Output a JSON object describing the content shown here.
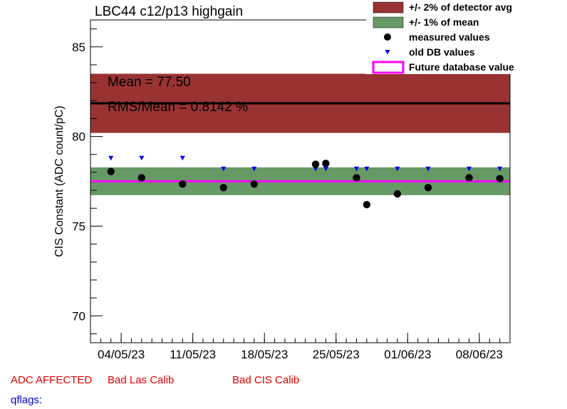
{
  "title": "LBC44 c12/p13 highgain",
  "footer": {
    "adc": "ADC AFFECTED",
    "las": "Bad Las Calib",
    "cis": "Bad CIS Calib",
    "qflags": "qflags:"
  },
  "colors": {
    "detector_band": "#993333",
    "mean_band": "#669966",
    "measured": "#000000",
    "old_db": "#0000ee",
    "future": "#ff00ff",
    "mean_line": "#000000"
  },
  "chart_data": {
    "type": "scatter",
    "title": "LBC44 c12/p13 highgain",
    "ylabel": "CIS Constant (ADC count/pC)",
    "xlabel": "",
    "ylim": [
      68.5,
      86.5
    ],
    "xlim": [
      "2023-05-01",
      "2023-06-11"
    ],
    "y_ticks": [
      70,
      75,
      80,
      85
    ],
    "x_tick_labels": [
      "04/05/23",
      "11/05/23",
      "18/05/23",
      "25/05/23",
      "01/06/23",
      "08/06/23"
    ],
    "mean_text": "Mean = 77.50",
    "rms_text": "RMS/Mean = 0.8142 %",
    "detector_avg": 81.85,
    "detector_band": [
      80.2,
      83.5
    ],
    "mean": 77.5,
    "mean_band": [
      76.73,
      78.28
    ],
    "future_value": 77.5,
    "grid": false,
    "legend_position": "top-right",
    "legend": [
      {
        "label": "+/- 2% of detector avg",
        "kind": "box",
        "color": "#993333"
      },
      {
        "label": "+/- 1% of mean",
        "kind": "box",
        "color": "#669966"
      },
      {
        "label": "measured values",
        "kind": "dot",
        "color": "#000000"
      },
      {
        "label": "old DB values",
        "kind": "tri",
        "color": "#0000ee"
      },
      {
        "label": "Future database value",
        "kind": "line",
        "color": "#ff00ff"
      }
    ],
    "series": [
      {
        "name": "measured values",
        "points": [
          {
            "x": "2023-05-03",
            "y": 78.05
          },
          {
            "x": "2023-05-06",
            "y": 77.7
          },
          {
            "x": "2023-05-10",
            "y": 77.35
          },
          {
            "x": "2023-05-14",
            "y": 77.15
          },
          {
            "x": "2023-05-17",
            "y": 77.35
          },
          {
            "x": "2023-05-23",
            "y": 78.45
          },
          {
            "x": "2023-05-24",
            "y": 78.5
          },
          {
            "x": "2023-05-27",
            "y": 77.7
          },
          {
            "x": "2023-05-28",
            "y": 76.2
          },
          {
            "x": "2023-05-31",
            "y": 76.8
          },
          {
            "x": "2023-06-03",
            "y": 77.15
          },
          {
            "x": "2023-06-07",
            "y": 77.7
          },
          {
            "x": "2023-06-10",
            "y": 77.65
          }
        ]
      },
      {
        "name": "old DB values",
        "points": [
          {
            "x": "2023-05-03",
            "y": 78.8
          },
          {
            "x": "2023-05-06",
            "y": 78.8
          },
          {
            "x": "2023-05-10",
            "y": 78.8
          },
          {
            "x": "2023-05-14",
            "y": 78.2
          },
          {
            "x": "2023-05-17",
            "y": 78.2
          },
          {
            "x": "2023-05-23",
            "y": 78.2
          },
          {
            "x": "2023-05-24",
            "y": 78.2
          },
          {
            "x": "2023-05-27",
            "y": 78.2
          },
          {
            "x": "2023-05-28",
            "y": 78.2
          },
          {
            "x": "2023-05-31",
            "y": 78.2
          },
          {
            "x": "2023-06-03",
            "y": 78.2
          },
          {
            "x": "2023-06-07",
            "y": 78.2
          },
          {
            "x": "2023-06-10",
            "y": 78.2
          }
        ]
      }
    ]
  }
}
